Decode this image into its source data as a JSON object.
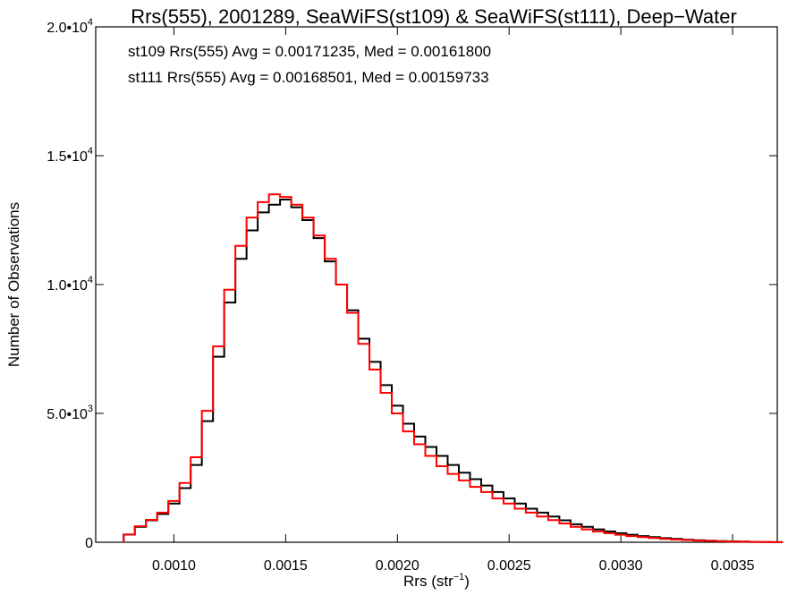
{
  "chart_data": {
    "type": "histogram",
    "title": "Rrs(555), 2001289, SeaWiFS(st109) & SeaWiFS(st111), Deep−Water",
    "xlabel": "Rrs (str",
    "xlabel_sup": "−1",
    "xlabel_close": ")",
    "ylabel": "Number of Observations",
    "xlim": [
      0.00065,
      0.0037
    ],
    "ylim": [
      0,
      20000
    ],
    "x_ticks": [
      {
        "value": 0.001,
        "label": "0.0010"
      },
      {
        "value": 0.0015,
        "label": "0.0015"
      },
      {
        "value": 0.002,
        "label": "0.0020"
      },
      {
        "value": 0.0025,
        "label": "0.0025"
      },
      {
        "value": 0.003,
        "label": "0.0030"
      },
      {
        "value": 0.0035,
        "label": "0.0035"
      }
    ],
    "y_ticks": [
      {
        "value": 0,
        "label": "0",
        "exp": ""
      },
      {
        "value": 5000,
        "label": "5.0•10",
        "exp": "3"
      },
      {
        "value": 10000,
        "label": "1.0•10",
        "exp": "4"
      },
      {
        "value": 15000,
        "label": "1.5•10",
        "exp": "4"
      },
      {
        "value": 20000,
        "label": "2.0•10",
        "exp": "4"
      }
    ],
    "grid": false,
    "annotations": [
      {
        "text": "st109 Rrs(555) Avg = 0.00171235, Med = 0.00161800",
        "color": "#000000"
      },
      {
        "text": "st111 Rrs(555) Avg = 0.00168501, Med = 0.00159733",
        "color": "#ff0000"
      }
    ],
    "series": [
      {
        "name": "st109",
        "color": "#000000",
        "x": [
          0.0008,
          0.00085,
          0.0009,
          0.00095,
          0.001,
          0.00105,
          0.0011,
          0.00115,
          0.0012,
          0.00125,
          0.0013,
          0.00135,
          0.0014,
          0.00145,
          0.0015,
          0.00155,
          0.0016,
          0.00165,
          0.0017,
          0.00175,
          0.0018,
          0.00185,
          0.0019,
          0.00195,
          0.002,
          0.00205,
          0.0021,
          0.00215,
          0.0022,
          0.00225,
          0.0023,
          0.00235,
          0.0024,
          0.00245,
          0.0025,
          0.00255,
          0.0026,
          0.00265,
          0.0027,
          0.00275,
          0.0028,
          0.00285,
          0.0029,
          0.00295,
          0.003,
          0.00305,
          0.0031,
          0.00315,
          0.0032,
          0.00325,
          0.0033,
          0.00335,
          0.0034,
          0.00345,
          0.0035,
          0.00355,
          0.0036,
          0.00365,
          0.0037
        ],
        "values": [
          300,
          600,
          850,
          1100,
          1500,
          2100,
          3000,
          4700,
          7200,
          9300,
          11000,
          12100,
          12800,
          13100,
          13300,
          13000,
          12500,
          11800,
          10900,
          10000,
          9000,
          7900,
          7000,
          6100,
          5300,
          4600,
          4100,
          3700,
          3350,
          3000,
          2700,
          2450,
          2200,
          1950,
          1700,
          1500,
          1300,
          1150,
          1000,
          850,
          700,
          600,
          500,
          420,
          350,
          290,
          240,
          200,
          160,
          130,
          100,
          80,
          60,
          45,
          35,
          25,
          15,
          10,
          5
        ]
      },
      {
        "name": "st111",
        "color": "#ff0000",
        "x": [
          0.0008,
          0.00085,
          0.0009,
          0.00095,
          0.001,
          0.00105,
          0.0011,
          0.00115,
          0.0012,
          0.00125,
          0.0013,
          0.00135,
          0.0014,
          0.00145,
          0.0015,
          0.00155,
          0.0016,
          0.00165,
          0.0017,
          0.00175,
          0.0018,
          0.00185,
          0.0019,
          0.00195,
          0.002,
          0.00205,
          0.0021,
          0.00215,
          0.0022,
          0.00225,
          0.0023,
          0.00235,
          0.0024,
          0.00245,
          0.0025,
          0.00255,
          0.0026,
          0.00265,
          0.0027,
          0.00275,
          0.0028,
          0.00285,
          0.0029,
          0.00295,
          0.003,
          0.00305,
          0.0031,
          0.00315,
          0.0032,
          0.00325,
          0.0033,
          0.00335,
          0.0034,
          0.00345,
          0.0035,
          0.00355,
          0.0036,
          0.00365,
          0.0037
        ],
        "values": [
          300,
          620,
          870,
          1150,
          1600,
          2300,
          3300,
          5100,
          7600,
          9800,
          11500,
          12600,
          13200,
          13500,
          13400,
          13100,
          12600,
          11900,
          11000,
          10000,
          8900,
          7700,
          6700,
          5800,
          5000,
          4300,
          3800,
          3350,
          2950,
          2650,
          2400,
          2150,
          1950,
          1700,
          1500,
          1300,
          1150,
          1000,
          860,
          730,
          600,
          500,
          420,
          350,
          290,
          240,
          200,
          165,
          130,
          105,
          85,
          65,
          50,
          38,
          28,
          20,
          12,
          8,
          4
        ]
      }
    ]
  }
}
